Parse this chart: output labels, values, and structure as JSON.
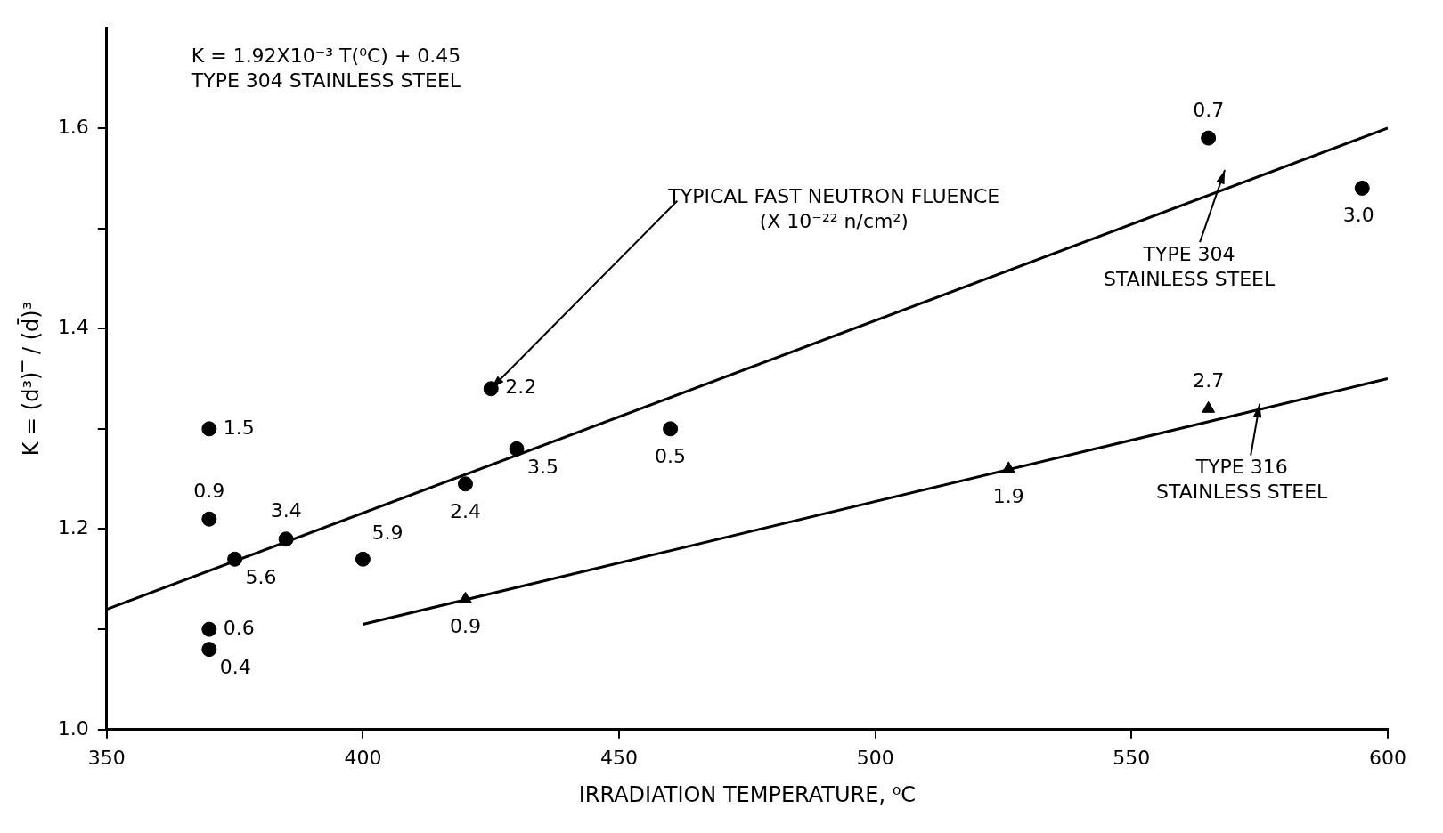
{
  "chart_data": {
    "type": "scatter",
    "xlabel": "IRRADIATION TEMPERATURE, ⁰C",
    "ylabel": "K = (d³)‾ / (d̄)³",
    "xlim": [
      350,
      600
    ],
    "xticks": [
      350,
      400,
      450,
      500,
      550,
      600
    ],
    "ylim": [
      1.0,
      1.7
    ],
    "yticks": [
      {
        "value": 1.0,
        "label": "1.0"
      },
      {
        "value": 1.1,
        "label": null
      },
      1.2,
      {
        "value": 1.3,
        "label": null
      },
      1.4,
      {
        "value": 1.5,
        "label": null
      },
      1.6
    ],
    "series": [
      {
        "marker": "circle",
        "color": "#000000",
        "x": [
          370,
          370,
          370,
          370,
          375,
          385,
          400,
          420,
          425,
          430,
          460,
          565,
          595
        ],
        "values": [
          1.3,
          1.21,
          1.1,
          1.08,
          1.17,
          1.19,
          1.17,
          1.245,
          1.34,
          1.28,
          1.3,
          1.59,
          1.54
        ]
      },
      {
        "marker": "triangle",
        "color": "#000000",
        "x": [
          420,
          526,
          565
        ],
        "values": [
          1.13,
          1.26,
          1.32
        ]
      },
      {
        "type": "line",
        "color": "#000000",
        "x": [
          350,
          600
        ],
        "values": [
          1.12,
          1.6
        ]
      },
      {
        "type": "line",
        "color": "#000000",
        "x": [
          400,
          600
        ],
        "values": [
          1.105,
          1.35
        ]
      }
    ],
    "annotations": [
      "K = 1.92X10⁻³ T(⁰C) + 0.45\nTYPE 304 STAINLESS STEEL",
      {
        "text": "TYPICAL FAST NEUTRON FLUENCE\n(X 10⁻²² n/cm²)",
        "x": 425,
        "y": 1.34
      },
      "TYPE 304\nSTAINLESS STEEL",
      {
        "text": "TYPE 316\nSTAINLESS STEEL",
        "x": 575,
        "y": 1.325
      },
      {
        "text": "1.5",
        "x": 370,
        "y": 1.3
      },
      {
        "text": "0.9",
        "x": 370,
        "y": 1.21
      },
      {
        "text": "0.6",
        "x": 370,
        "y": 1.1
      },
      {
        "text": "0.4",
        "x": 370,
        "y": 1.08
      },
      {
        "text": "5.6",
        "x": 375,
        "y": 1.17
      },
      {
        "text": "3.4",
        "x": 385,
        "y": 1.19
      },
      {
        "text": "5.9",
        "x": 400,
        "y": 1.17
      },
      {
        "text": "2.4",
        "x": 420,
        "y": 1.245
      },
      {
        "text": "2.2",
        "x": 425,
        "y": 1.34
      },
      {
        "text": "3.5",
        "x": 430,
        "y": 1.28
      },
      {
        "text": "0.5",
        "x": 460,
        "y": 1.3
      },
      {
        "text": "0.7",
        "x": 565,
        "y": 1.59
      },
      {
        "text": "3.0",
        "x": 595,
        "y": 1.54
      },
      {
        "text": "0.9",
        "x": 420,
        "y": 1.13
      },
      {
        "text": "1.9",
        "x": 526,
        "y": 1.26
      },
      {
        "text": "2.7",
        "x": 565,
        "y": 1.32
      }
    ]
  }
}
